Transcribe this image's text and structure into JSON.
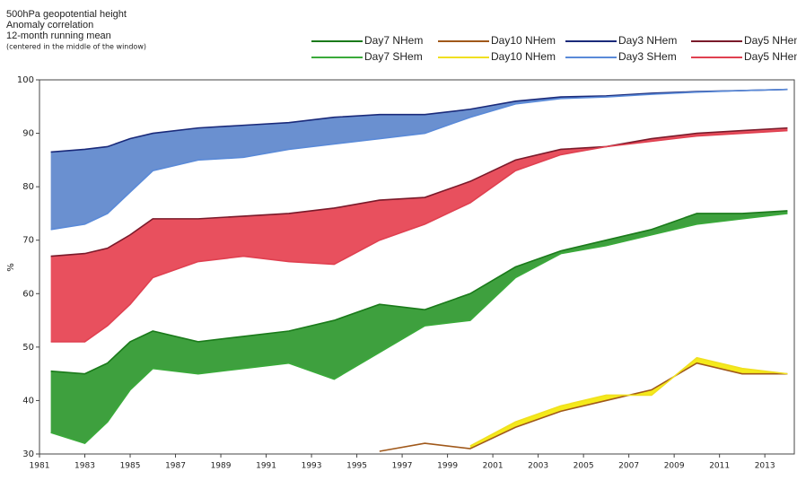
{
  "chart_data": {
    "type": "band-line",
    "title_lines": [
      "500hPa geopotential height",
      "Anomaly correlation",
      "12-month running mean",
      "(centered in the middle of the window)"
    ],
    "ylabel": "%",
    "x": [
      1981.5,
      1983,
      1984,
      1985,
      1986,
      1988,
      1990,
      1992,
      1994,
      1996,
      1998,
      2000,
      2002,
      2004,
      2006,
      2008,
      2010,
      2012,
      2014
    ],
    "series": [
      {
        "name": "Day7 NHem",
        "color": "#1a7a1a",
        "values": [
          45.5,
          45,
          47,
          51,
          53,
          51,
          52,
          53,
          55,
          58,
          57,
          60,
          65,
          68,
          70,
          72,
          75,
          75,
          75.5
        ]
      },
      {
        "name": "Day7 SHem",
        "color": "#3aaa3a",
        "values": [
          34,
          32,
          36,
          42,
          46,
          45,
          46,
          47,
          44,
          49,
          54,
          55,
          63,
          67.5,
          69,
          71,
          73,
          74,
          75
        ]
      },
      {
        "name": "Day10 NHem",
        "color": "#a0581a",
        "values": [
          null,
          null,
          null,
          null,
          null,
          null,
          null,
          null,
          null,
          30.5,
          32,
          31,
          35,
          38,
          40,
          42,
          47,
          45,
          45
        ]
      },
      {
        "name": "Day10 NHem",
        "color": "#f0e020",
        "values": [
          null,
          null,
          null,
          null,
          null,
          null,
          null,
          null,
          null,
          null,
          null,
          31.5,
          36,
          39,
          41,
          41,
          48,
          46,
          45
        ]
      },
      {
        "name": "Day3 NHem",
        "color": "#1a2a7a",
        "values": [
          86.5,
          87,
          87.5,
          89,
          90,
          91,
          91.5,
          92,
          93,
          93.5,
          93.5,
          94.5,
          96,
          96.8,
          97,
          97.5,
          97.8,
          98,
          98.2
        ]
      },
      {
        "name": "Day3 SHem",
        "color": "#5a8ad8",
        "values": [
          72,
          73,
          75,
          79,
          83,
          85,
          85.5,
          87,
          88,
          89,
          90,
          93,
          95.5,
          96.5,
          96.8,
          97.3,
          97.7,
          98,
          98.2
        ]
      },
      {
        "name": "Day5 NHem",
        "color": "#7a1a2a",
        "values": [
          67,
          67.5,
          68.5,
          71,
          74,
          74,
          74.5,
          75,
          76,
          77.5,
          78,
          81,
          85,
          87,
          87.5,
          89,
          90,
          90.5,
          91
        ]
      },
      {
        "name": "Day5 NHem",
        "color": "#e04050",
        "values": [
          51,
          51,
          54,
          58,
          63,
          66,
          67,
          66,
          65.5,
          70,
          73,
          77,
          83,
          86,
          87.5,
          88.5,
          89.5,
          90,
          90.5
        ]
      }
    ],
    "bands": [
      {
        "series": [
          0,
          1
        ],
        "color": "#3ea03e"
      },
      {
        "series": [
          2,
          3
        ],
        "color": "#f5ea1a"
      },
      {
        "series": [
          4,
          5
        ],
        "color": "#6a90d0"
      },
      {
        "series": [
          6,
          7
        ],
        "color": "#e8505e"
      }
    ],
    "xlim": [
      1981,
      2014.3
    ],
    "xticks": [
      1981,
      1983,
      1985,
      1987,
      1989,
      1991,
      1993,
      1995,
      1997,
      1999,
      2001,
      2003,
      2005,
      2007,
      2009,
      2011,
      2013
    ],
    "ylim": [
      30,
      100
    ],
    "yticks": [
      30,
      40,
      50,
      60,
      70,
      80,
      90,
      100
    ]
  }
}
